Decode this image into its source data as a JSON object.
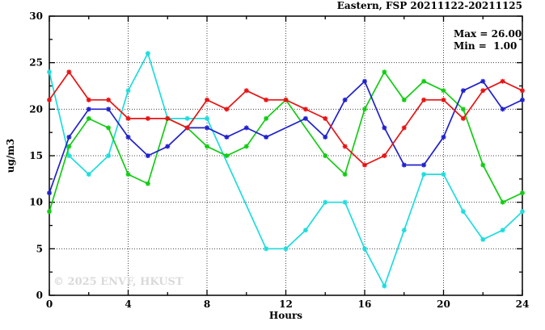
{
  "title": "Eastern, FSP 20211122-20211125",
  "annotation": {
    "max_label": "Max = 26.00",
    "min_label": "Min =  1.00"
  },
  "watermark": "© 2025 ENVF, HKUST",
  "chart_data": {
    "type": "line",
    "title": "Eastern, FSP 20211122-20211125",
    "xlabel": "Hours",
    "ylabel": "ug/m3",
    "xlim": [
      0,
      24
    ],
    "ylim": [
      0,
      30
    ],
    "x_major_ticks": [
      0,
      4,
      8,
      12,
      16,
      20,
      24
    ],
    "x_minor_step": 2,
    "y_major_ticks": [
      0,
      5,
      10,
      15,
      20,
      25,
      30
    ],
    "y_minor_step": 2.5,
    "grid": true,
    "legend": "none",
    "marker": "asterisk",
    "x": [
      0,
      1,
      2,
      3,
      4,
      5,
      6,
      7,
      8,
      9,
      10,
      11,
      12,
      13,
      14,
      15,
      16,
      17,
      18,
      19,
      20,
      21,
      22,
      23,
      24
    ],
    "series": [
      {
        "name": "cyan",
        "color": "#1edcdc",
        "values": [
          24,
          15,
          13,
          15,
          22,
          26,
          19,
          19,
          19,
          null,
          null,
          5,
          5,
          7,
          10,
          10,
          5,
          1,
          7,
          13,
          13,
          9,
          6,
          7,
          9
        ]
      },
      {
        "name": "green",
        "color": "#12cc12",
        "values": [
          9,
          16,
          19,
          18,
          13,
          12,
          19,
          18,
          16,
          15,
          16,
          19,
          21,
          null,
          15,
          13,
          20,
          24,
          21,
          23,
          22,
          20,
          14,
          10,
          11
        ]
      },
      {
        "name": "blue",
        "color": "#2121cd",
        "values": [
          11,
          17,
          20,
          20,
          17,
          15,
          16,
          18,
          18,
          17,
          18,
          17,
          null,
          19,
          17,
          21,
          23,
          18,
          14,
          14,
          17,
          22,
          23,
          20,
          21
        ]
      },
      {
        "name": "red",
        "color": "#e81313",
        "values": [
          21,
          24,
          21,
          21,
          19,
          19,
          19,
          18,
          21,
          20,
          22,
          21,
          21,
          20,
          19,
          16,
          14,
          15,
          18,
          21,
          21,
          19,
          22,
          23,
          22
        ]
      }
    ],
    "stats": {
      "max": 26.0,
      "min": 1.0
    }
  },
  "colors": {
    "grid": "#444444",
    "frame": "#000000",
    "watermark": "#d9d9d9"
  }
}
